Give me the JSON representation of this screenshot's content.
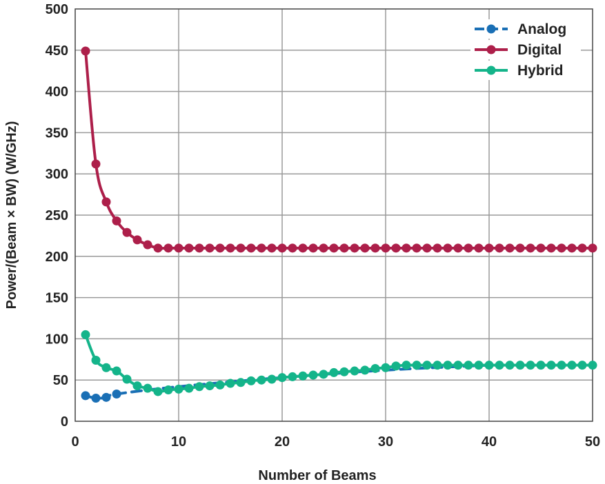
{
  "chart_data": {
    "type": "line",
    "title": "",
    "xlabel": "Number of Beams",
    "ylabel": "Power/(Beam × BW) (W/GHz)",
    "xlim": [
      0,
      50
    ],
    "ylim": [
      0,
      500
    ],
    "xticks": [
      0,
      10,
      20,
      30,
      40,
      50
    ],
    "yticks": [
      0,
      50,
      100,
      150,
      200,
      250,
      300,
      350,
      400,
      450,
      500
    ],
    "grid": true,
    "legend_position": "top-right",
    "series": [
      {
        "name": "Analog",
        "color": "#1a6fb5",
        "line_style": "dashed",
        "markers_x": [
          1,
          2,
          3,
          4
        ],
        "markers_y": [
          31,
          28,
          29,
          33
        ],
        "line_x": [
          1,
          2,
          3,
          4,
          10,
          20,
          30,
          40
        ],
        "line_y": [
          31,
          28,
          29,
          33,
          42,
          53,
          62,
          68
        ]
      },
      {
        "name": "Digital",
        "color": "#ad1f4a",
        "line_style": "solid",
        "x": [
          1,
          2,
          3,
          4,
          5,
          6,
          7,
          8,
          9,
          10,
          11,
          12,
          13,
          14,
          15,
          16,
          17,
          18,
          19,
          20,
          21,
          22,
          23,
          24,
          25,
          26,
          27,
          28,
          29,
          30,
          31,
          32,
          33,
          34,
          35,
          36,
          37,
          38,
          39,
          40,
          41,
          42,
          43,
          44,
          45,
          46,
          47,
          48,
          49,
          50
        ],
        "y": [
          449,
          312,
          266,
          243,
          229,
          220,
          214,
          210,
          210,
          210,
          210,
          210,
          210,
          210,
          210,
          210,
          210,
          210,
          210,
          210,
          210,
          210,
          210,
          210,
          210,
          210,
          210,
          210,
          210,
          210,
          210,
          210,
          210,
          210,
          210,
          210,
          210,
          210,
          210,
          210,
          210,
          210,
          210,
          210,
          210,
          210,
          210,
          210,
          210,
          210
        ]
      },
      {
        "name": "Hybrid",
        "color": "#14b48a",
        "line_style": "solid",
        "x": [
          1,
          2,
          3,
          4,
          5,
          6,
          7,
          8,
          9,
          10,
          11,
          12,
          13,
          14,
          15,
          16,
          17,
          18,
          19,
          20,
          21,
          22,
          23,
          24,
          25,
          26,
          27,
          28,
          29,
          30,
          31,
          32,
          33,
          34,
          35,
          36,
          37,
          38,
          39,
          40,
          41,
          42,
          43,
          44,
          45,
          46,
          47,
          48,
          49,
          50
        ],
        "y": [
          105,
          74,
          65,
          61,
          51,
          43,
          40,
          36,
          38,
          39,
          40,
          42,
          43,
          44,
          46,
          47,
          49,
          50,
          51,
          53,
          54,
          55,
          56,
          57,
          59,
          60,
          61,
          62,
          64,
          65,
          67,
          68,
          68,
          68,
          68,
          68,
          68,
          68,
          68,
          68,
          68,
          68,
          68,
          68,
          68,
          68,
          68,
          68,
          68,
          68
        ]
      }
    ]
  }
}
